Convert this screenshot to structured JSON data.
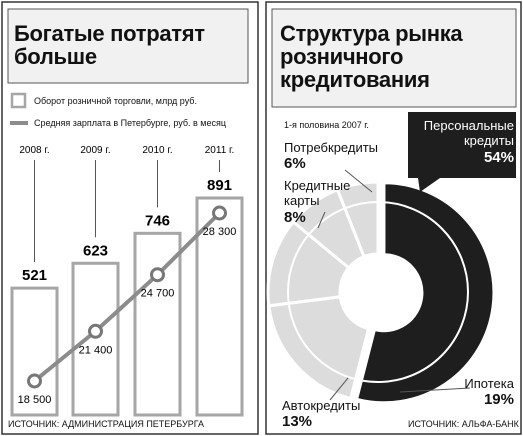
{
  "chart_data": [
    {
      "type": "bar",
      "title": "Богатые потратят больше",
      "categories": [
        "2008 г.",
        "2009 г.",
        "2010 г.",
        "2011 г."
      ],
      "series": [
        {
          "name": "Оборот розничной торговли, млрд руб.",
          "color": "#a6a6a6",
          "values": [
            521,
            623,
            746,
            891
          ]
        },
        {
          "name": "Средняя зарплата в Петербурге, руб. в месяц",
          "type": "line",
          "color": "#8c8c8c",
          "values": [
            18500,
            21400,
            24700,
            28300
          ],
          "value_labels": [
            "18 500",
            "21 400",
            "24 700",
            "28 300"
          ]
        }
      ],
      "source": "ИСТОЧНИК: АДМИНИСТРАЦИЯ ПЕТЕРБУРГА"
    },
    {
      "type": "pie",
      "title": "Структура рынка розничного кредитования",
      "subtitle": "1-я половина 2007 г.",
      "categories": [
        "Персональные кредиты",
        "Ипотека",
        "Автокредиты",
        "Кредитные карты",
        "Потребкредиты"
      ],
      "values": [
        54,
        19,
        13,
        8,
        6
      ],
      "value_labels": [
        "54%",
        "19%",
        "13%",
        "8%",
        "6%"
      ],
      "colors": [
        "#1e1e1e",
        "#dcdcdc",
        "#dcdcdc",
        "#dcdcdc",
        "#dcdcdc"
      ],
      "source": "ИСТОЧНИК: АЛЬФА-БАНК"
    }
  ]
}
